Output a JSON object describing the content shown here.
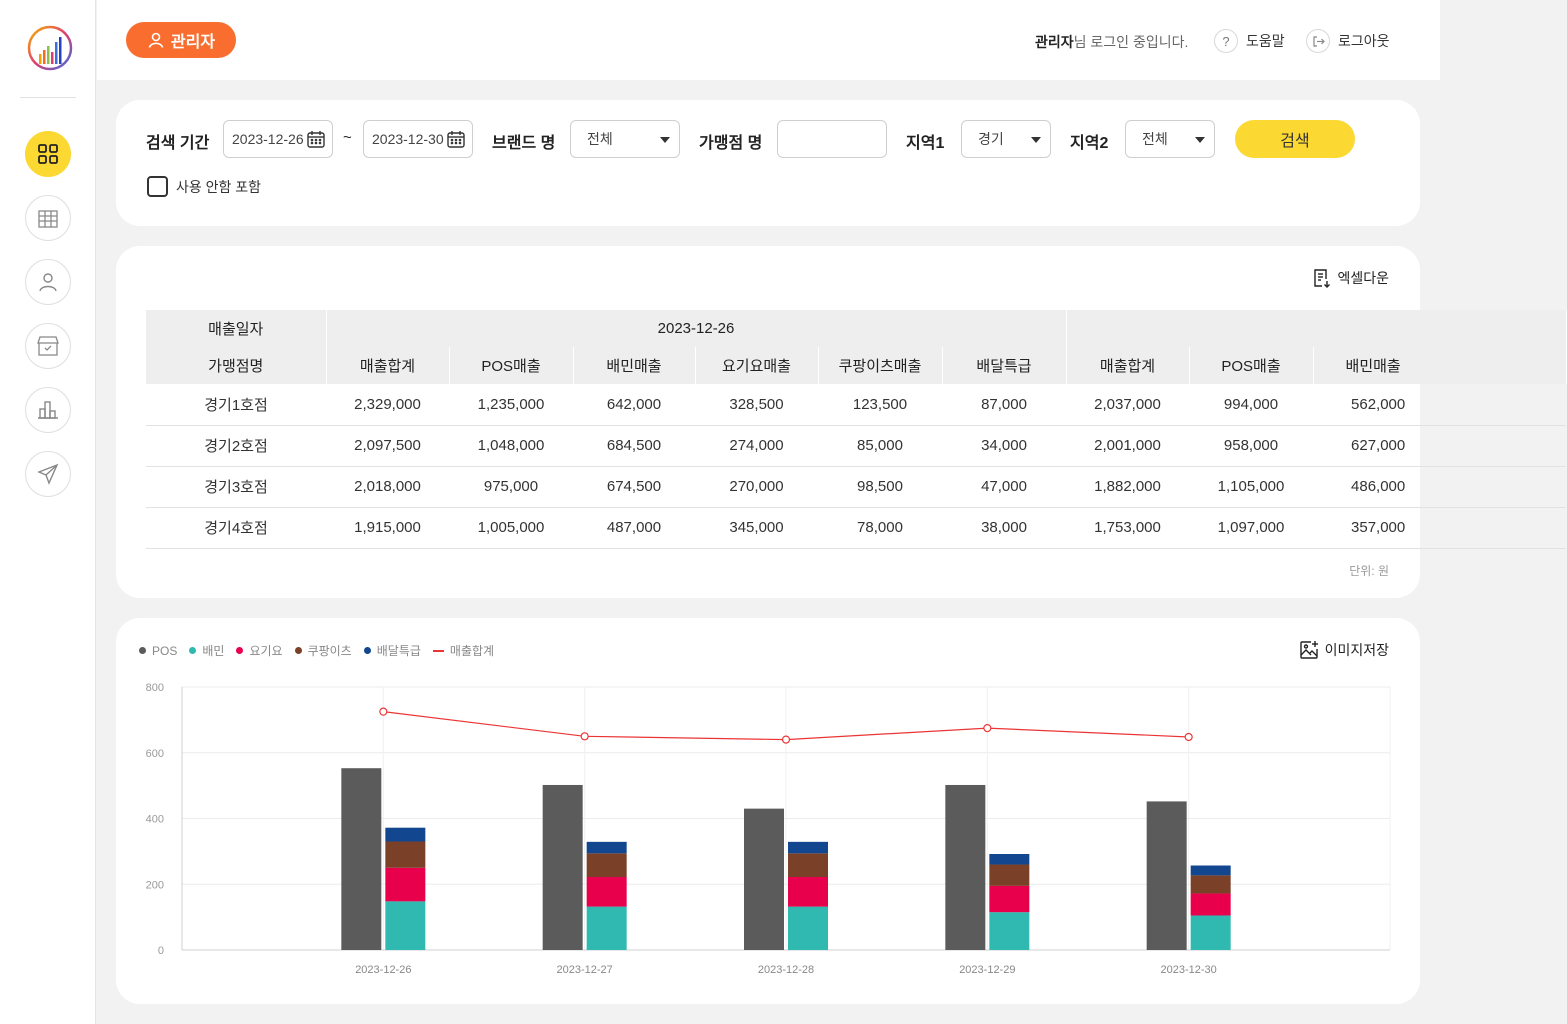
{
  "header": {
    "admin_label": "관리자",
    "login_user": "관리자",
    "login_suffix": "님 로그인 중입니다.",
    "help_label": "도움말",
    "logout_label": "로그아웃"
  },
  "sidebar": {
    "items": [
      {
        "name": "dashboard",
        "icon": "grid-icon",
        "active": true
      },
      {
        "name": "buildings",
        "icon": "building-icon"
      },
      {
        "name": "users",
        "icon": "person-icon"
      },
      {
        "name": "stores",
        "icon": "store-icon"
      },
      {
        "name": "sales",
        "icon": "bar-chart-icon"
      },
      {
        "name": "messages",
        "icon": "send-icon"
      }
    ]
  },
  "filters": {
    "period_label": "검색 기간",
    "start_date": "2023-12-26",
    "tilde": "~",
    "end_date": "2023-12-30",
    "brand_label": "브랜드 명",
    "brand_value": "전체",
    "store_label": "가맹점 명",
    "store_value": "",
    "region1_label": "지역1",
    "region1_value": "경기",
    "region2_label": "지역2",
    "region2_value": "전체",
    "search_button": "검색",
    "include_unused_label": "사용 안함 포함"
  },
  "table": {
    "excel_label": "엑셀다운",
    "date_header": "매출일자",
    "store_header": "가맹점명",
    "date_groups": [
      "2023-12-26",
      ""
    ],
    "columns": [
      "매출합계",
      "POS매출",
      "배민매출",
      "요기요매출",
      "쿠팡이츠매출",
      "배달특급",
      "매출합계",
      "POS매출",
      "배민매출"
    ],
    "rows": [
      {
        "store": "경기1호점",
        "values": [
          "2,329,000",
          "1,235,000",
          "642,000",
          "328,500",
          "123,500",
          "87,000",
          "2,037,000",
          "994,000",
          "562,000"
        ]
      },
      {
        "store": "경기2호점",
        "values": [
          "2,097,500",
          "1,048,000",
          "684,500",
          "274,000",
          "85,000",
          "34,000",
          "2,001,000",
          "958,000",
          "627,000"
        ]
      },
      {
        "store": "경기3호점",
        "values": [
          "2,018,000",
          "975,000",
          "674,500",
          "270,000",
          "98,500",
          "47,000",
          "1,882,000",
          "1,105,000",
          "486,000"
        ]
      },
      {
        "store": "경기4호점",
        "values": [
          "1,915,000",
          "1,005,000",
          "487,000",
          "345,000",
          "78,000",
          "38,000",
          "1,753,000",
          "1,097,000",
          "357,000"
        ]
      }
    ],
    "unit_label": "단위: 원"
  },
  "chart_panel": {
    "save_image_label": "이미지저장"
  },
  "chart_data": {
    "type": "bar",
    "categories": [
      "2023-12-26",
      "2023-12-27",
      "2023-12-28",
      "2023-12-29",
      "2023-12-30"
    ],
    "ylim": [
      0,
      800
    ],
    "yticks": [
      0,
      200,
      400,
      600,
      800
    ],
    "grid": true,
    "legend_position": "top-left",
    "bar_series": [
      {
        "name": "POS",
        "color": "#5b5b5b",
        "stack": "pos",
        "values": [
          553,
          502,
          430,
          502,
          452
        ]
      },
      {
        "name": "배민",
        "color": "#30b9b1",
        "stack": "delivery",
        "values": [
          148,
          132,
          132,
          115,
          105
        ]
      },
      {
        "name": "요기요",
        "color": "#e9004c",
        "stack": "delivery",
        "values": [
          102,
          90,
          90,
          80,
          67
        ]
      },
      {
        "name": "쿠팡이츠",
        "color": "#7b4028",
        "stack": "delivery",
        "values": [
          80,
          72,
          72,
          65,
          55
        ]
      },
      {
        "name": "배달특급",
        "color": "#12468f",
        "stack": "delivery",
        "values": [
          42,
          35,
          35,
          32,
          30
        ]
      }
    ],
    "line_series": {
      "name": "매출합계",
      "color": "#ec3434",
      "values": [
        725,
        650,
        640,
        675,
        648
      ]
    }
  }
}
